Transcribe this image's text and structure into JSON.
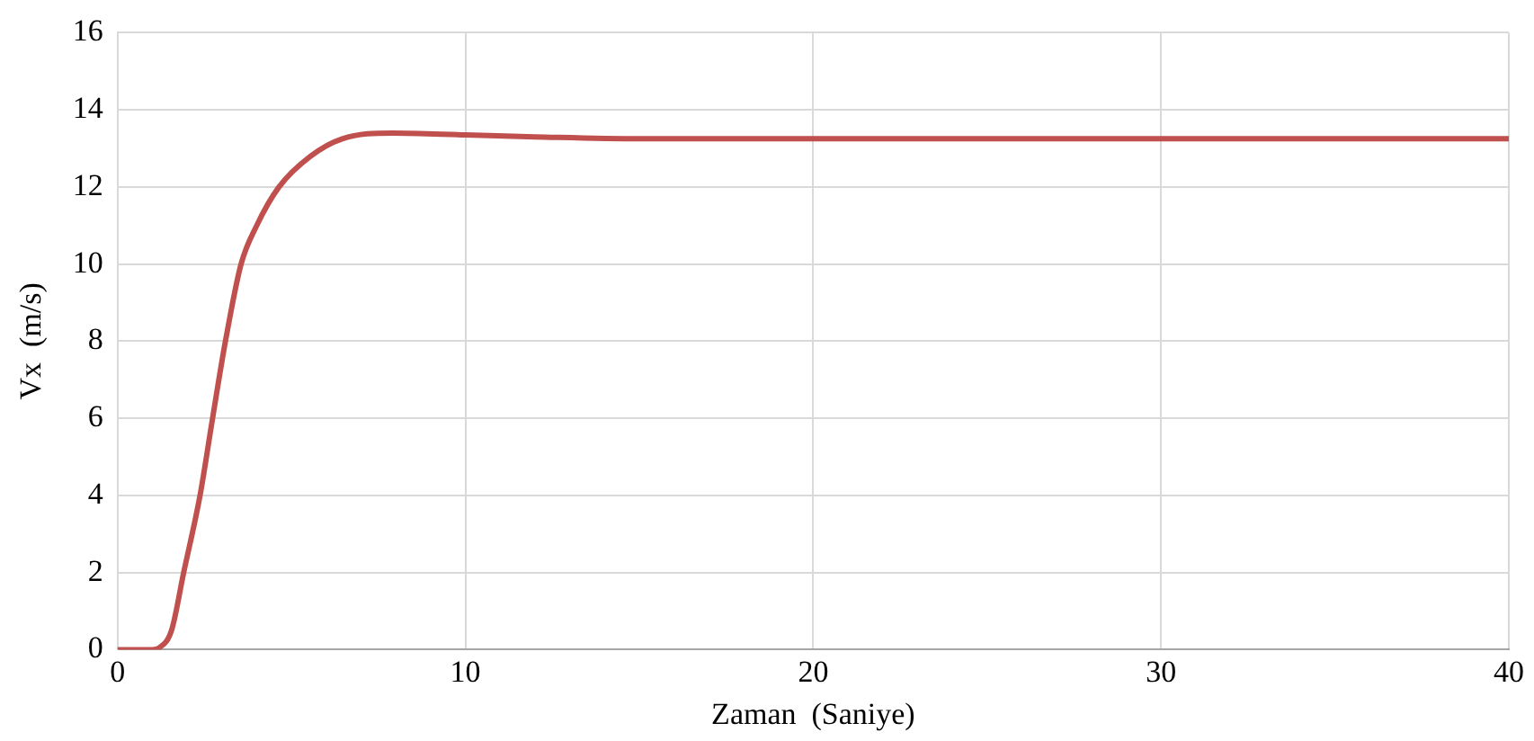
{
  "chart_data": {
    "type": "line",
    "xlabel": "Zaman  (Saniye)",
    "ylabel": "Vx  (m/s)",
    "x": [
      0,
      1.0,
      1.2,
      1.55,
      1.9,
      2.37,
      2.73,
      3.1,
      3.55,
      4.0,
      4.64,
      5.55,
      6.46,
      7.9,
      10,
      12,
      15,
      20,
      30,
      40
    ],
    "series": [
      {
        "color": "#c0504d",
        "values": [
          0,
          0,
          0.05,
          0.5,
          2,
          4,
          6,
          8,
          10,
          11,
          12,
          12.8,
          13.25,
          13.4,
          13.35,
          13.3,
          13.25,
          13.25,
          13.25,
          13.25
        ]
      }
    ],
    "xlim": [
      0,
      40
    ],
    "xticks": [
      0,
      10,
      20,
      30,
      40
    ],
    "ylim": [
      0,
      16
    ],
    "yticks": [
      0,
      2,
      4,
      6,
      8,
      10,
      12,
      14,
      16
    ],
    "grid": true,
    "legend": false,
    "marker": "none",
    "line_style": "solid"
  }
}
